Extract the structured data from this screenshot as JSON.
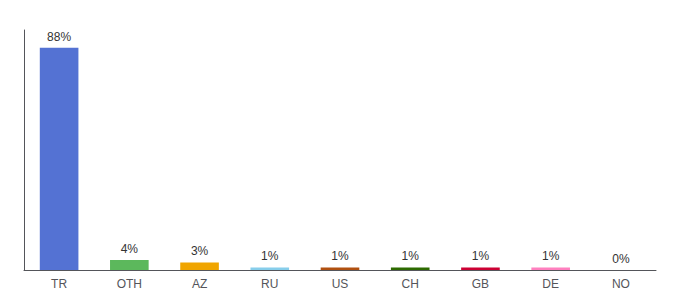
{
  "chart_data": {
    "type": "bar",
    "categories": [
      "TR",
      "OTH",
      "AZ",
      "RU",
      "US",
      "CH",
      "GB",
      "DE",
      "NO"
    ],
    "values": [
      88,
      4,
      3,
      1,
      1,
      1,
      1,
      1,
      0
    ],
    "value_labels": [
      "88%",
      "4%",
      "3%",
      "1%",
      "1%",
      "1%",
      "1%",
      "1%",
      "0%"
    ],
    "colors": [
      "#5472d3",
      "#5cb85c",
      "#f0a500",
      "#87CEEB",
      "#b05010",
      "#2d6a00",
      "#cc0033",
      "#ff80bf",
      "#cccccc"
    ],
    "ylim": [
      0,
      95
    ],
    "data_labels": true,
    "tick_labels": "x",
    "grid": false
  }
}
